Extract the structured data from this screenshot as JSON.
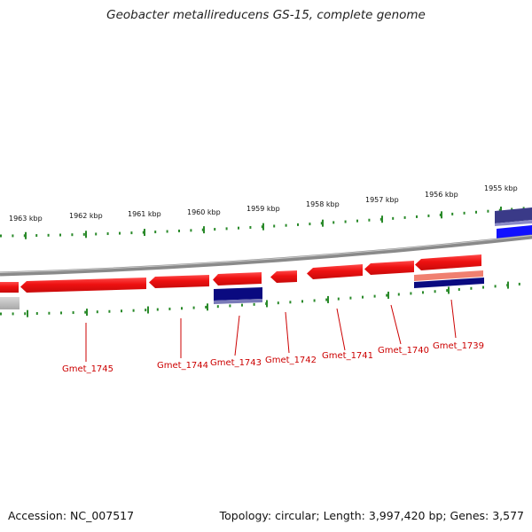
{
  "title": "Geobacter metallireducens GS-15, complete genome",
  "footer": {
    "accession": "Accession: NC_007517",
    "summary": "Topology: circular; Length: 3,997,420 bp; Genes: 3,577"
  },
  "colors": {
    "forward_gene": "#ee1111",
    "reverse_gene": "#ee1111",
    "rna_block": "#0a0a80",
    "blue_block": "#1111ff",
    "purple_block": "#3a3a88",
    "backbone": "#8a8a8a",
    "tick": "#2a8a2a",
    "label": "#cc0000"
  },
  "kbp_ticks": [
    {
      "label": "1963 kbp"
    },
    {
      "label": "1962 kbp"
    },
    {
      "label": "1961 kbp"
    },
    {
      "label": "1960 kbp"
    },
    {
      "label": "1959 kbp"
    },
    {
      "label": "1958 kbp"
    },
    {
      "label": "1957 kbp"
    },
    {
      "label": "1956 kbp"
    },
    {
      "label": "1955 kbp"
    }
  ],
  "gene_labels": [
    {
      "label": "Gmet_1745"
    },
    {
      "label": "Gmet_1744"
    },
    {
      "label": "Gmet_1743"
    },
    {
      "label": "Gmet_1742"
    },
    {
      "label": "Gmet_1741"
    },
    {
      "label": "Gmet_1740"
    },
    {
      "label": "Gmet_1739"
    }
  ]
}
